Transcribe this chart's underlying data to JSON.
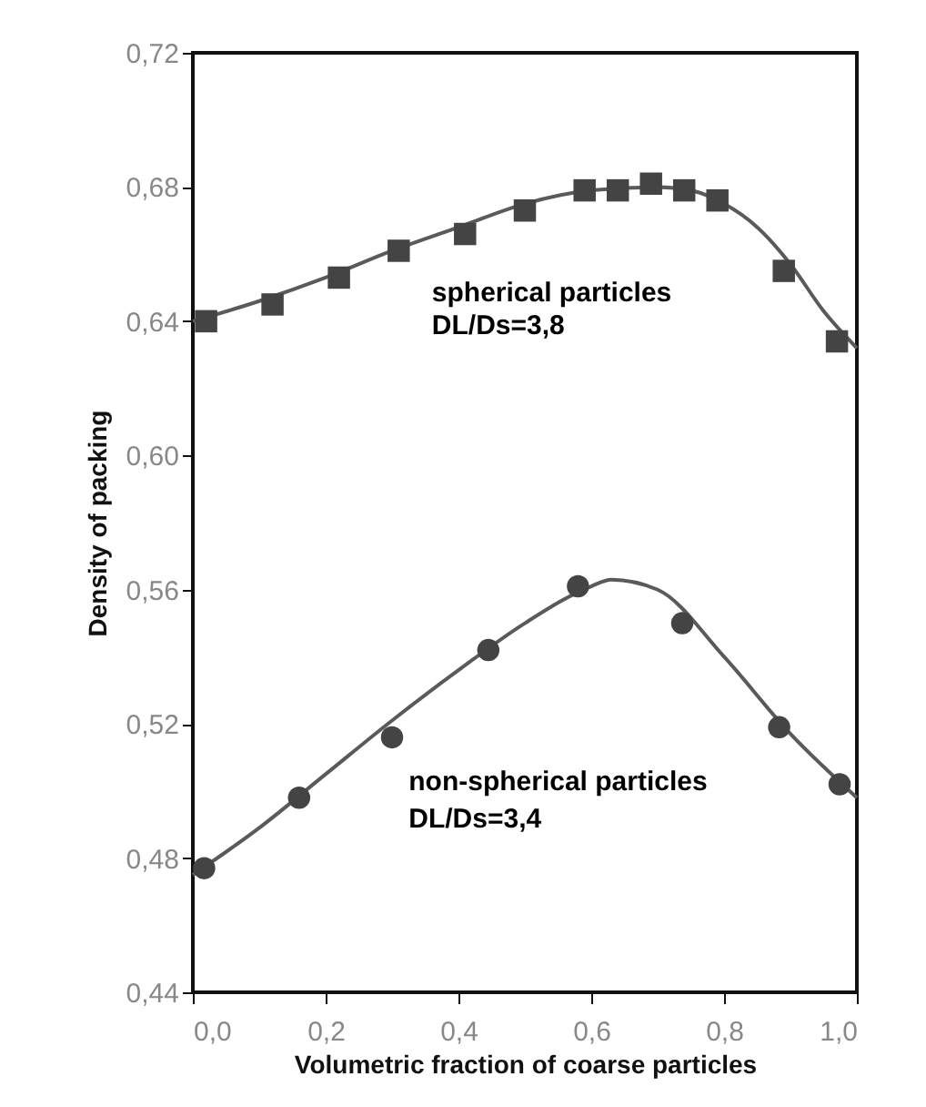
{
  "chart_data": {
    "type": "scatter",
    "xlabel": "Volumetric fraction of coarse particles",
    "ylabel": "Density of packing",
    "xlim": [
      0,
      1
    ],
    "ylim": [
      0.44,
      0.72
    ],
    "xticks": [
      {
        "value": 0,
        "label": "0,0"
      },
      {
        "value": 0.2,
        "label": "0,2"
      },
      {
        "value": 0.4,
        "label": "0,4"
      },
      {
        "value": 0.6,
        "label": "0,6"
      },
      {
        "value": 0.8,
        "label": "0,8"
      },
      {
        "value": 1,
        "label": "1,0"
      }
    ],
    "yticks": [
      {
        "value": 0.44,
        "label": "0,44"
      },
      {
        "value": 0.48,
        "label": "0,48"
      },
      {
        "value": 0.52,
        "label": "0,52"
      },
      {
        "value": 0.56,
        "label": "0,56"
      },
      {
        "value": 0.6,
        "label": "0,60"
      },
      {
        "value": 0.64,
        "label": "0,64"
      },
      {
        "value": 0.68,
        "label": "0,68"
      },
      {
        "value": 0.72,
        "label": "0,72"
      }
    ],
    "grid": false,
    "series": [
      {
        "type": "line",
        "color": "#5a5a5a",
        "x": [
          0,
          0.1,
          0.2,
          0.3,
          0.4,
          0.5,
          0.6,
          0.7,
          0.75,
          0.8,
          0.85,
          0.9,
          0.95,
          1.0
        ],
        "values": [
          0.64,
          0.646,
          0.653,
          0.661,
          0.668,
          0.675,
          0.679,
          0.68,
          0.679,
          0.675,
          0.668,
          0.657,
          0.643,
          0.632
        ]
      },
      {
        "marker": "square",
        "color": "#444444",
        "x": [
          0.02,
          0.12,
          0.22,
          0.31,
          0.41,
          0.5,
          0.59,
          0.64,
          0.69,
          0.74,
          0.79,
          0.89,
          0.97
        ],
        "values": [
          0.64,
          0.645,
          0.653,
          0.661,
          0.666,
          0.673,
          0.679,
          0.679,
          0.681,
          0.679,
          0.676,
          0.655,
          0.634
        ]
      },
      {
        "type": "line",
        "color": "#5a5a5a",
        "x": [
          0,
          0.1,
          0.2,
          0.3,
          0.4,
          0.5,
          0.6,
          0.63,
          0.7,
          0.8,
          0.9,
          1.0
        ],
        "values": [
          0.475,
          0.489,
          0.505,
          0.521,
          0.536,
          0.55,
          0.561,
          0.563,
          0.56,
          0.54,
          0.517,
          0.498
        ]
      },
      {
        "marker": "circle",
        "color": "#444444",
        "x": [
          0.017,
          0.16,
          0.3,
          0.445,
          0.58,
          0.737,
          0.883,
          0.974
        ],
        "values": [
          0.477,
          0.498,
          0.516,
          0.542,
          0.561,
          0.55,
          0.519,
          0.502
        ]
      }
    ],
    "annotations": [
      "spherical particles",
      "DL/Ds=3,8",
      "non-spherical particles",
      "DL/Ds=3,4"
    ]
  }
}
